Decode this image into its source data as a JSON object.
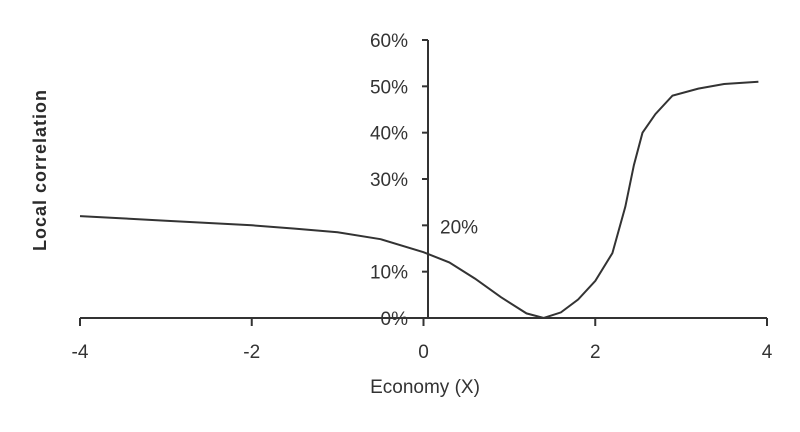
{
  "chart_data": {
    "type": "line",
    "xlabel": "Economy (X)",
    "ylabel": "Local correlation",
    "xlim": [
      -4,
      4
    ],
    "ylim": [
      0,
      0.6
    ],
    "x_ticks": [
      {
        "value": -4,
        "label": "-4"
      },
      {
        "value": -2,
        "label": "-2"
      },
      {
        "value": 0,
        "label": "0"
      },
      {
        "value": 2,
        "label": "2"
      },
      {
        "value": 4,
        "label": "4"
      }
    ],
    "y_ticks": [
      {
        "value": 0,
        "label": "0%"
      },
      {
        "value": 0.1,
        "label": "10%"
      },
      {
        "value": 0.2,
        "label": "20%"
      },
      {
        "value": 0.3,
        "label": "30%"
      },
      {
        "value": 0.4,
        "label": "40%"
      },
      {
        "value": 0.5,
        "label": "50%"
      },
      {
        "value": 0.6,
        "label": "60%"
      }
    ],
    "grid": false,
    "series": [
      {
        "color": "#333333",
        "x": [
          -4,
          -3.5,
          -3,
          -2.5,
          -2,
          -1.5,
          -1,
          -0.5,
          0,
          0.3,
          0.6,
          0.9,
          1.2,
          1.4,
          1.6,
          1.8,
          2.0,
          2.2,
          2.35,
          2.45,
          2.55,
          2.7,
          2.9,
          3.2,
          3.5,
          3.9
        ],
        "y": [
          0.22,
          0.215,
          0.21,
          0.205,
          0.2,
          0.193,
          0.185,
          0.17,
          0.142,
          0.12,
          0.085,
          0.045,
          0.01,
          0.0,
          0.012,
          0.04,
          0.08,
          0.14,
          0.24,
          0.33,
          0.4,
          0.44,
          0.48,
          0.495,
          0.505,
          0.51
        ]
      }
    ]
  }
}
